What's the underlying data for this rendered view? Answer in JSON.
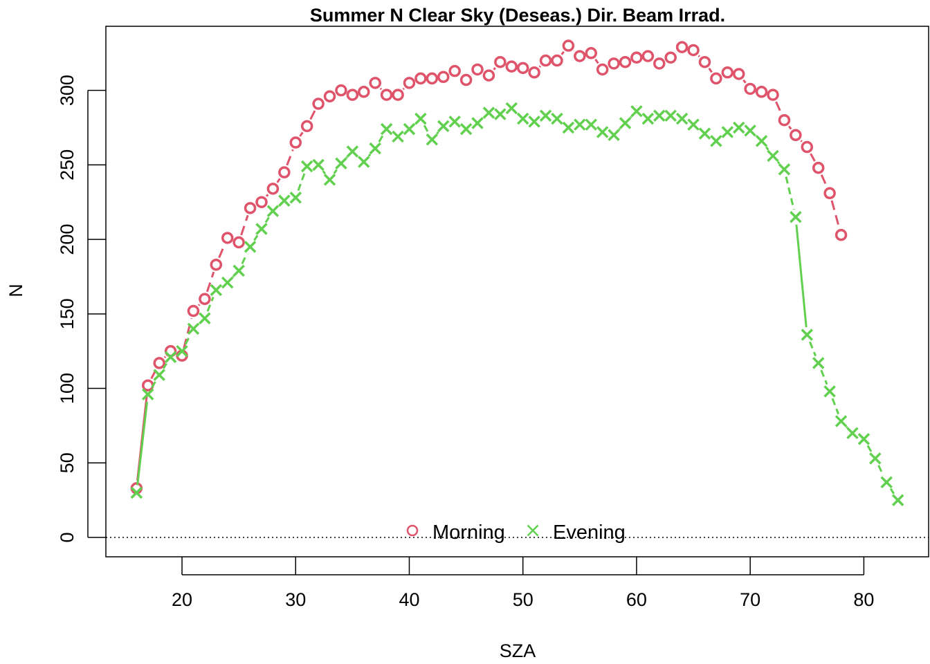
{
  "chart_data": {
    "type": "line",
    "title": "Summer N Clear Sky (Deseas.) Dir. Beam Irrad.",
    "xlabel": "SZA",
    "ylabel": "N",
    "xlim": [
      13.3,
      85.7
    ],
    "ylim": [
      -13,
      343
    ],
    "x_ticks": [
      20,
      30,
      40,
      50,
      60,
      70,
      80
    ],
    "y_ticks": [
      0,
      50,
      100,
      150,
      200,
      250,
      300
    ],
    "reference_line": {
      "y": 0,
      "style": "dotted"
    },
    "legend_position": "bottom-center",
    "series": [
      {
        "name": "Morning",
        "color": "#DF536B",
        "marker": "circle",
        "x": [
          16,
          17,
          18,
          19,
          20,
          21,
          22,
          23,
          24,
          25,
          26,
          27,
          28,
          29,
          30,
          31,
          32,
          33,
          34,
          35,
          36,
          37,
          38,
          39,
          40,
          41,
          42,
          43,
          44,
          45,
          46,
          47,
          48,
          49,
          50,
          51,
          52,
          53,
          54,
          55,
          56,
          57,
          58,
          59,
          60,
          61,
          62,
          63,
          64,
          65,
          66,
          67,
          68,
          69,
          70,
          71,
          72,
          73,
          74,
          75,
          76,
          77,
          78
        ],
        "y": [
          33,
          102,
          117,
          125,
          122,
          152,
          160,
          183,
          201,
          198,
          221,
          225,
          234,
          245,
          265,
          276,
          291,
          296,
          300,
          297,
          299,
          305,
          297,
          297,
          305,
          308,
          308,
          309,
          313,
          307,
          314,
          310,
          319,
          316,
          315,
          312,
          320,
          320,
          330,
          323,
          325,
          314,
          318,
          319,
          322,
          323,
          318,
          322,
          329,
          327,
          319,
          308,
          312,
          311,
          301,
          299,
          297,
          280,
          270,
          262,
          248,
          231,
          203
        ]
      },
      {
        "name": "Evening",
        "color": "#61D04F",
        "marker": "cross",
        "x": [
          16,
          17,
          18,
          19,
          20,
          21,
          22,
          23,
          24,
          25,
          26,
          27,
          28,
          29,
          30,
          31,
          32,
          33,
          34,
          35,
          36,
          37,
          38,
          39,
          40,
          41,
          42,
          43,
          44,
          45,
          46,
          47,
          48,
          49,
          50,
          51,
          52,
          53,
          54,
          55,
          56,
          57,
          58,
          59,
          60,
          61,
          62,
          63,
          64,
          65,
          66,
          67,
          68,
          69,
          70,
          71,
          72,
          73,
          74,
          75,
          76,
          77,
          78,
          79,
          80,
          81,
          82,
          83
        ],
        "y": [
          30,
          96,
          109,
          121,
          125,
          140,
          147,
          166,
          171,
          179,
          195,
          207,
          219,
          226,
          228,
          249,
          250,
          240,
          251,
          259,
          252,
          261,
          274,
          269,
          274,
          281,
          267,
          276,
          279,
          274,
          278,
          285,
          284,
          288,
          281,
          279,
          283,
          281,
          275,
          277,
          277,
          272,
          270,
          278,
          286,
          281,
          283,
          283,
          281,
          277,
          271,
          266,
          272,
          275,
          273,
          266,
          256,
          247,
          215,
          136,
          117,
          98,
          78,
          70,
          66,
          53,
          37,
          25
        ]
      }
    ]
  }
}
